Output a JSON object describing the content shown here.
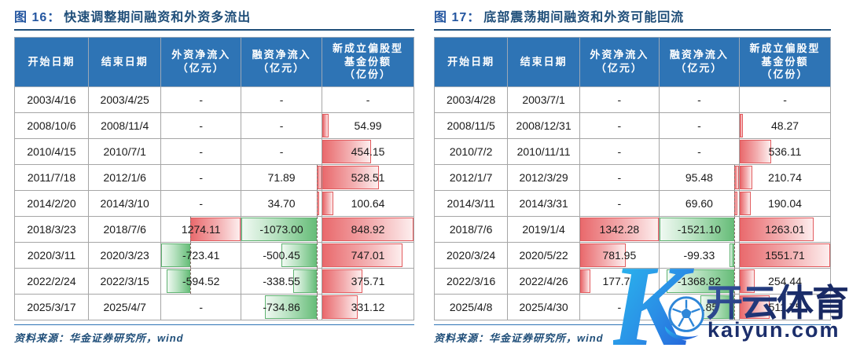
{
  "tables": [
    {
      "title_prefix": "图 16：",
      "title": "快速调整期间融资和外资多流出",
      "source": "资料来源：华金证券研究所，wind",
      "columns": [
        "开始日期",
        "结束日期",
        "外资净流入\n（亿元）",
        "融资净流入\n（亿元）",
        "新成立偏股型\n基金份额\n（亿份）"
      ],
      "rows": [
        [
          "2003/4/16",
          "2003/4/25",
          "-",
          "-",
          "-"
        ],
        [
          "2008/10/6",
          "2008/11/4",
          "-",
          "-",
          "54.99"
        ],
        [
          "2010/4/15",
          "2010/7/1",
          "-",
          "-",
          "454.15"
        ],
        [
          "2011/7/18",
          "2012/1/6",
          "-",
          "71.89",
          "528.51"
        ],
        [
          "2014/2/20",
          "2014/3/10",
          "-",
          "34.70",
          "100.64"
        ],
        [
          "2018/3/23",
          "2018/7/6",
          "1274.11",
          "-1073.00",
          "848.92"
        ],
        [
          "2020/3/11",
          "2020/3/23",
          "-723.41",
          "-500.45",
          "747.01"
        ],
        [
          "2022/2/24",
          "2022/3/15",
          "-594.52",
          "-338.55",
          "375.71"
        ],
        [
          "2025/3/17",
          "2025/4/7",
          "-",
          "-734.86",
          "331.12"
        ]
      ]
    },
    {
      "title_prefix": "图 17：",
      "title": "底部震荡期间融资和外资可能回流",
      "source": "资料来源：华金证券研究所，wind",
      "columns": [
        "开始日期",
        "结束日期",
        "外资净流入\n（亿元）",
        "融资净流入\n（亿元）",
        "新成立偏股型\n基金份额\n（亿份）"
      ],
      "rows": [
        [
          "2003/4/28",
          "2003/7/1",
          "-",
          "-",
          "-"
        ],
        [
          "2008/11/5",
          "2008/12/31",
          "-",
          "-",
          "48.27"
        ],
        [
          "2010/7/2",
          "2010/11/11",
          "-",
          "-",
          "536.11"
        ],
        [
          "2012/1/7",
          "2012/3/29",
          "-",
          "95.48",
          "210.74"
        ],
        [
          "2014/3/11",
          "2014/3/31",
          "-",
          "69.60",
          "190.04"
        ],
        [
          "2018/7/6",
          "2019/1/4",
          "1342.28",
          "-1521.10",
          "1263.01"
        ],
        [
          "2020/3/24",
          "2020/5/22",
          "781.95",
          "-99.33",
          "1551.71"
        ],
        [
          "2022/3/16",
          "2022/4/26",
          "177.75",
          "-1368.82",
          "254.44"
        ],
        [
          "2025/4/8",
          "2025/4/30",
          "-",
          "-682.85",
          "511.75"
        ]
      ]
    }
  ],
  "colors": {
    "header_bg": "#2e74b5",
    "title_blue": "#1f4e79",
    "bar_positive": "#e96a6d",
    "bar_negative": "#67bd79",
    "watermark_navy": "#1b2e6b",
    "watermark_cyan": "#29c1ef"
  },
  "watermark": {
    "k_letter": "K",
    "brand": "开云体育",
    "domain": "kaiyun.com",
    "ball_icon": "soccer-ball-icon"
  }
}
